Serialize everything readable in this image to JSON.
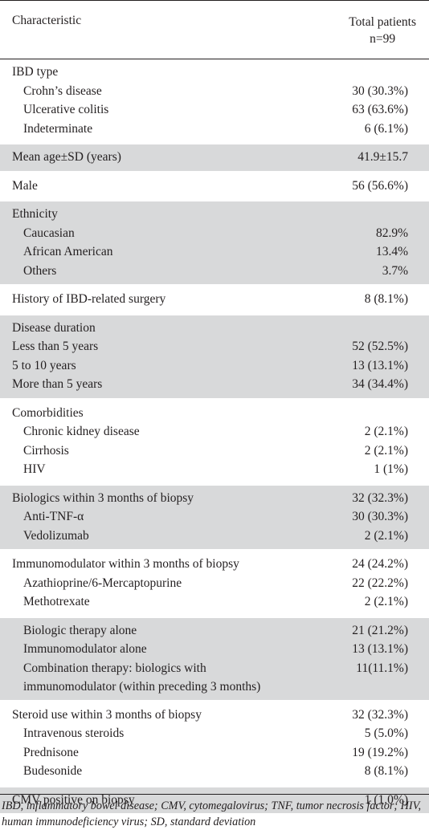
{
  "header": {
    "col1": "Characteristic",
    "col2_line1": "Total patients",
    "col2_line2": "n=99"
  },
  "groups": [
    {
      "shade": false,
      "rows": [
        {
          "label": "IBD type",
          "value": "",
          "sub": false
        },
        {
          "label": "Crohn’s disease",
          "value": "30 (30.3%)",
          "sub": true
        },
        {
          "label": "Ulcerative colitis",
          "value": "63 (63.6%)",
          "sub": true
        },
        {
          "label": "Indeterminate",
          "value": "6 (6.1%)",
          "sub": true
        }
      ]
    },
    {
      "shade": true,
      "rows": [
        {
          "label": "Mean age±SD (years)",
          "value": "41.9±15.7",
          "sub": false
        }
      ]
    },
    {
      "shade": false,
      "rows": [
        {
          "label": "Male",
          "value": "56 (56.6%)",
          "sub": false
        }
      ]
    },
    {
      "shade": true,
      "rows": [
        {
          "label": "Ethnicity",
          "value": "",
          "sub": false
        },
        {
          "label": "Caucasian",
          "value": "82.9%",
          "sub": true
        },
        {
          "label": "African American",
          "value": "13.4%",
          "sub": true
        },
        {
          "label": "Others",
          "value": "3.7%",
          "sub": true
        }
      ]
    },
    {
      "shade": false,
      "rows": [
        {
          "label": "History of IBD-related surgery",
          "value": "8 (8.1%)",
          "sub": false
        }
      ]
    },
    {
      "shade": true,
      "rows": [
        {
          "label": "Disease duration",
          "value": "",
          "sub": false
        },
        {
          "label": "Less than 5 years",
          "value": "52 (52.5%)",
          "sub": false
        },
        {
          "label": "5 to 10 years",
          "value": "13 (13.1%)",
          "sub": false
        },
        {
          "label": "More than 5 years",
          "value": "34 (34.4%)",
          "sub": false
        }
      ]
    },
    {
      "shade": false,
      "rows": [
        {
          "label": "Comorbidities",
          "value": "",
          "sub": false
        },
        {
          "label": "Chronic kidney disease",
          "value": "2 (2.1%)",
          "sub": true
        },
        {
          "label": "Cirrhosis",
          "value": "2 (2.1%)",
          "sub": true
        },
        {
          "label": "HIV",
          "value": "1 (1%)",
          "sub": true
        }
      ]
    },
    {
      "shade": true,
      "rows": [
        {
          "label": "Biologics within 3 months of biopsy",
          "value": "32 (32.3%)",
          "sub": false
        },
        {
          "label": "Anti-TNF-α",
          "value": "30 (30.3%)",
          "sub": true
        },
        {
          "label": "Vedolizumab",
          "value": "2 (2.1%)",
          "sub": true
        }
      ]
    },
    {
      "shade": false,
      "rows": [
        {
          "label": "Immunomodulator within 3 months of biopsy",
          "value": "24 (24.2%)",
          "sub": false
        },
        {
          "label": "Azathioprine/6-Mercaptopurine",
          "value": "22 (22.2%)",
          "sub": true
        },
        {
          "label": "Methotrexate",
          "value": "2 (2.1%)",
          "sub": true
        }
      ]
    },
    {
      "shade": true,
      "rows": [
        {
          "label": "Biologic therapy alone",
          "value": "21 (21.2%)",
          "sub": true
        },
        {
          "label": "Immunomodulator alone",
          "value": "13 (13.1%)",
          "sub": true
        },
        {
          "label": "Combination therapy: biologics with",
          "label2": "immunomodulator (within preceding 3 months)",
          "value": "11(11.1%)",
          "sub": true
        }
      ]
    },
    {
      "shade": false,
      "rows": [
        {
          "label": "Steroid use within 3 months of biopsy",
          "value": "32 (32.3%)",
          "sub": false
        },
        {
          "label": "Intravenous steroids",
          "value": "5 (5.0%)",
          "sub": true
        },
        {
          "label": "Prednisone",
          "value": "19 (19.2%)",
          "sub": true
        },
        {
          "label": "Budesonide",
          "value": "8 (8.1%)",
          "sub": true
        }
      ]
    },
    {
      "shade": true,
      "rows": [
        {
          "label": "CMV positive on biopsy",
          "value": "1 (1.0%)",
          "sub": false
        }
      ]
    }
  ],
  "footnote": "IBD, inflammatory bowel disease; CMV, cytomegalovirus; TNF, tumor necrosis factor; HIV, human immunodeficiency virus; SD, standard deviation"
}
